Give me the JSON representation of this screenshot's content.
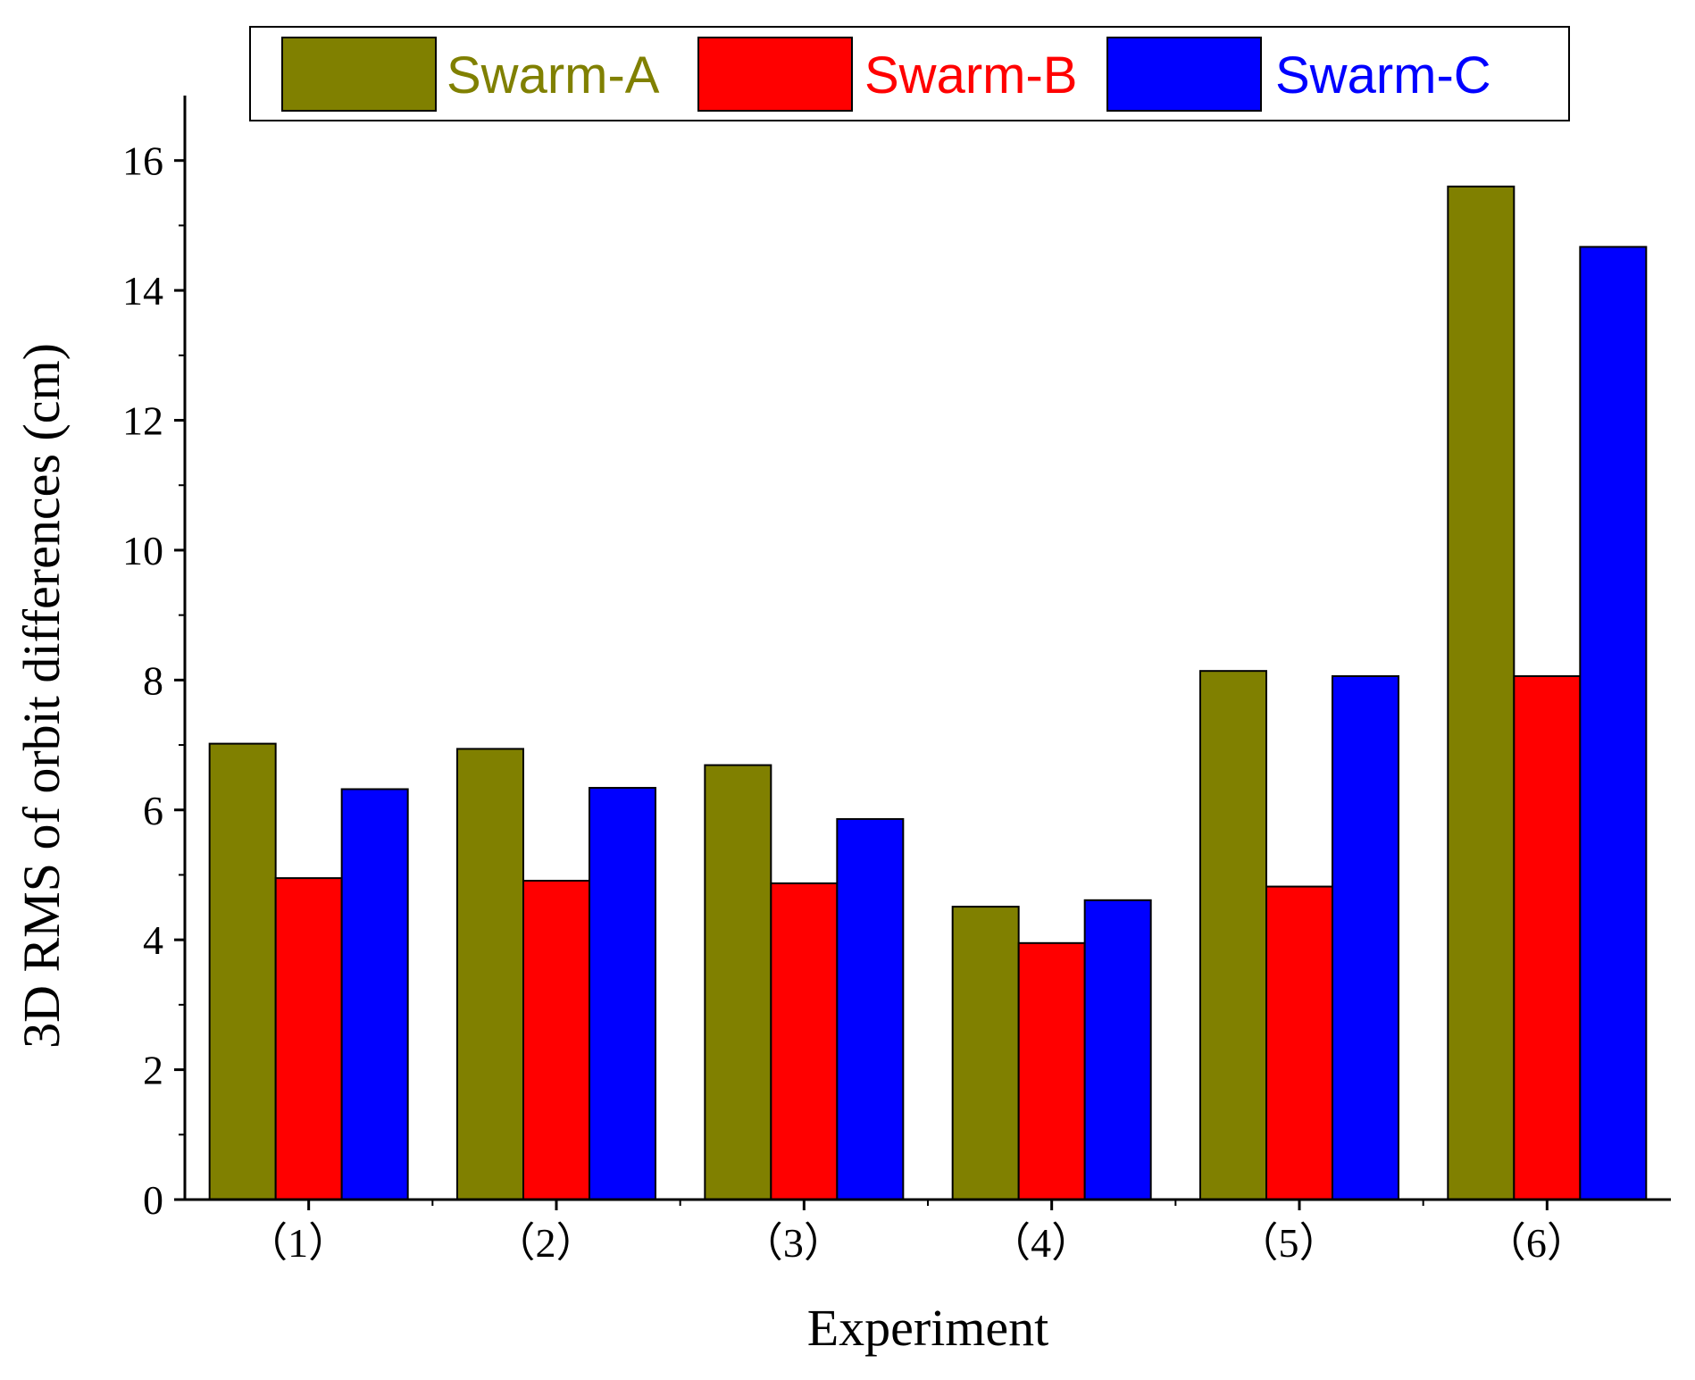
{
  "chart_data": {
    "type": "bar",
    "title": "",
    "xlabel": "Experiment",
    "ylabel": "3D RMS of orbit differences (cm)",
    "categories": [
      "（1）",
      "（2）",
      "（3）",
      "（4）",
      "（5）",
      "（6）"
    ],
    "series": [
      {
        "name": "Swarm-A",
        "color": "#808000",
        "values": [
          7.02,
          6.94,
          6.69,
          4.51,
          8.14,
          15.6
        ]
      },
      {
        "name": "Swarm-B",
        "color": "#ff0000",
        "values": [
          4.95,
          4.91,
          4.87,
          3.95,
          4.82,
          8.06
        ]
      },
      {
        "name": "Swarm-C",
        "color": "#0000ff",
        "values": [
          6.32,
          6.34,
          5.86,
          4.61,
          8.06,
          14.67
        ]
      }
    ],
    "ylim": [
      0,
      17
    ],
    "yticks": [
      0,
      2,
      4,
      6,
      8,
      10,
      12,
      14,
      16
    ],
    "grid": false,
    "legend_position": "top"
  }
}
